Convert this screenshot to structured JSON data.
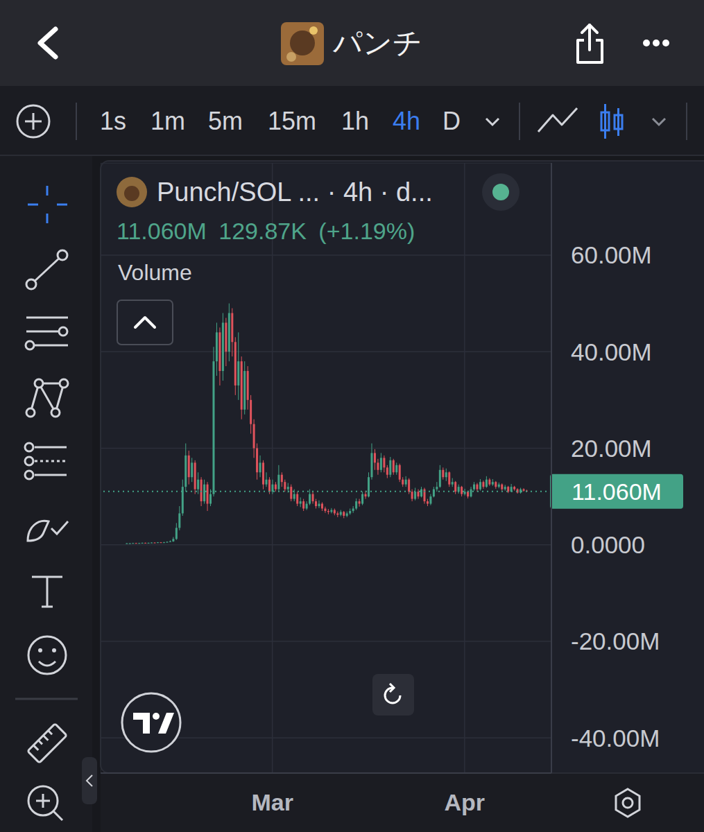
{
  "header": {
    "title": "パンチ"
  },
  "toolbar": {
    "timeframes": [
      "1s",
      "1m",
      "5m",
      "15m",
      "1h",
      "4h",
      "D"
    ],
    "active": "4h"
  },
  "chart_data": {
    "type": "candlestick",
    "title": "Punch/SOL ... · 4h · d...",
    "subtitle": "11.060M 129.87K (+1.19%)",
    "annotations": [
      "Volume"
    ],
    "grid": true,
    "last": {
      "value": 11.06,
      "label": "11.060M"
    },
    "xlim": [
      0.3,
      73
    ],
    "xticks": [
      {
        "value": 28,
        "label": "Mar"
      },
      {
        "value": 59,
        "label": "Apr"
      }
    ],
    "ylim": [
      -47.3,
      79.1
    ],
    "yticks": [
      {
        "value": -40,
        "label": "-40.00M"
      },
      {
        "value": -20,
        "label": "-20.00M"
      },
      {
        "value": 0,
        "label": "0.0000"
      },
      {
        "value": 20,
        "label": "20.00M"
      },
      {
        "value": 40,
        "label": "40.00M"
      },
      {
        "value": 60,
        "label": "60.00M"
      }
    ],
    "x": [
      4.5,
      5,
      5.5,
      6,
      6.5,
      7,
      7.5,
      8,
      8.5,
      9,
      9.5,
      10,
      10.5,
      11,
      11.5,
      12,
      12.5,
      13,
      13.5,
      14,
      14.5,
      15,
      15.5,
      16,
      16.5,
      17,
      17.5,
      18,
      18.5,
      19,
      19.5,
      20,
      20.5,
      21,
      21.5,
      22,
      22.5,
      23,
      23.5,
      24,
      24.5,
      25,
      25.5,
      26,
      26.5,
      27,
      27.5,
      28,
      28.5,
      29,
      29.5,
      30,
      30.5,
      31,
      31.5,
      32,
      32.5,
      33,
      33.5,
      34,
      34.5,
      35,
      35.5,
      36,
      36.5,
      37,
      37.5,
      38,
      38.5,
      39,
      39.5,
      40,
      40.5,
      41,
      41.5,
      42,
      42.5,
      43,
      43.5,
      44,
      44.5,
      45,
      45.5,
      46,
      46.5,
      47,
      47.5,
      48,
      48.5,
      49,
      49.5,
      50,
      50.5,
      51,
      51.5,
      52,
      52.5,
      53,
      53.5,
      54,
      54.5,
      55,
      55.5,
      56,
      56.5,
      57,
      57.5,
      58,
      58.5,
      59,
      59.5,
      60,
      60.5,
      61,
      61.5,
      62,
      62.5,
      63,
      63.5,
      64,
      64.5,
      65,
      65.5,
      66,
      66.5,
      67,
      67.5,
      68,
      68.5,
      69
    ],
    "open": [
      0.3,
      0.3,
      0.3,
      0.35,
      0.3,
      0.35,
      0.4,
      0.35,
      0.4,
      0.45,
      0.4,
      0.5,
      0.45,
      0.5,
      0.6,
      0.7,
      1.2,
      3.5,
      6.5,
      12,
      18.5,
      14,
      17,
      11.5,
      13.5,
      9,
      12.5,
      8.5,
      10.5,
      38,
      44,
      36,
      46,
      40,
      48,
      42,
      33,
      38,
      28,
      36,
      30,
      25,
      20,
      15,
      17,
      12.5,
      13.5,
      11,
      12.5,
      11.5,
      14.5,
      13,
      11.5,
      12,
      9.5,
      10.5,
      8.5,
      9,
      7.5,
      8.5,
      10.5,
      9,
      8,
      8.5,
      7.5,
      7,
      6.8,
      7.2,
      6.5,
      6.2,
      6.8,
      6,
      6.5,
      7,
      7.5,
      9,
      8.5,
      10.5,
      10,
      14,
      19,
      17,
      15.5,
      18,
      16,
      14.5,
      17.5,
      15,
      16.5,
      13.5,
      12.5,
      13.5,
      11,
      9.5,
      11,
      10,
      11.5,
      9,
      8.5,
      10,
      11.5,
      12,
      15.5,
      14,
      15,
      12.5,
      13,
      11,
      12,
      10.5,
      11,
      10,
      11.5,
      12.5,
      11.5,
      13,
      12,
      13.5,
      12.5,
      13,
      12,
      12.5,
      11.5,
      12,
      11,
      12,
      11.5,
      10.8,
      11.5,
      11.2
    ],
    "high": [
      0.35,
      0.35,
      0.4,
      0.4,
      0.4,
      0.45,
      0.45,
      0.45,
      0.5,
      0.5,
      0.55,
      0.55,
      0.6,
      0.7,
      0.9,
      1.6,
      4.5,
      8,
      13.5,
      21,
      19.5,
      18,
      17.5,
      15,
      14,
      13.5,
      13,
      11.5,
      41,
      46,
      45,
      48,
      47,
      50,
      49,
      43,
      44,
      39,
      38,
      37,
      31,
      26,
      21,
      18.5,
      17.5,
      15,
      14,
      13.5,
      13,
      16.5,
      15,
      13.5,
      12.8,
      12.5,
      11.5,
      11,
      9.8,
      9.5,
      9,
      11.5,
      11,
      9.5,
      9.2,
      8.8,
      7.9,
      7.4,
      7.6,
      7.5,
      6.9,
      7.2,
      7,
      6.9,
      7.5,
      8,
      9.6,
      9.5,
      11,
      11.2,
      15,
      21,
      19.8,
      17.8,
      19,
      18.5,
      16.5,
      18.2,
      17.8,
      17,
      16.8,
      14,
      14.2,
      13.8,
      11.5,
      11.8,
      11.5,
      12,
      11.8,
      9.5,
      10.5,
      12,
      13,
      16.5,
      16,
      15.8,
      15.2,
      13.8,
      13.2,
      12.5,
      12.2,
      11.6,
      11.2,
      12,
      13,
      12.8,
      13.6,
      13.3,
      14.2,
      13.8,
      13.6,
      13.2,
      12.9,
      12.7,
      12.4,
      12.2,
      12.6,
      12.2,
      11.7,
      11.8,
      11.7,
      11.4
    ],
    "low": [
      0.25,
      0.25,
      0.28,
      0.28,
      0.28,
      0.32,
      0.3,
      0.32,
      0.38,
      0.35,
      0.38,
      0.4,
      0.42,
      0.45,
      0.55,
      0.6,
      1,
      3,
      6,
      11,
      12.5,
      13,
      10.5,
      10.5,
      8,
      8.5,
      7,
      8,
      10,
      35,
      33,
      34,
      37,
      38,
      39,
      31,
      30,
      26,
      27,
      28,
      23,
      18,
      13.5,
      14,
      11.5,
      12,
      10.5,
      10.5,
      11,
      11,
      12,
      11,
      10.8,
      9,
      9,
      8,
      7.8,
      7,
      7.2,
      8.2,
      8.5,
      7.5,
      7.6,
      7,
      6.6,
      6.3,
      6.5,
      6.1,
      5.7,
      5.9,
      5.5,
      5.7,
      6.2,
      6.6,
      7.2,
      7.9,
      8.2,
      9.5,
      9.8,
      13.5,
      15.5,
      14.5,
      15,
      15,
      13.8,
      14,
      14.5,
      14.5,
      13,
      12,
      12,
      10.5,
      9,
      9.2,
      9.5,
      9.8,
      8.5,
      8,
      8.2,
      9.8,
      11,
      11.8,
      13.5,
      13.2,
      12,
      12,
      10.5,
      10.6,
      10,
      10.2,
      9.6,
      9.8,
      11.2,
      11,
      11.2,
      11.6,
      11.8,
      12.2,
      12.2,
      11.6,
      11.7,
      11.2,
      11.2,
      10.7,
      10.9,
      11.2,
      10.6,
      10.6,
      11,
      10.9
    ],
    "close": [
      0.3,
      0.3,
      0.35,
      0.3,
      0.35,
      0.4,
      0.35,
      0.4,
      0.45,
      0.4,
      0.5,
      0.45,
      0.5,
      0.6,
      0.7,
      1.2,
      3.5,
      6.5,
      12,
      18.5,
      14,
      17,
      11.5,
      13.5,
      9,
      12.5,
      8.5,
      10.5,
      38,
      44,
      36,
      46,
      40,
      48,
      42,
      33,
      38,
      28,
      36,
      30,
      25,
      20,
      15,
      17,
      12.5,
      13.5,
      11,
      12.5,
      11.5,
      14.5,
      13,
      11.5,
      12,
      9.5,
      10.5,
      8.5,
      9,
      7.5,
      8.5,
      10.5,
      9,
      8,
      8.5,
      7.5,
      7,
      6.8,
      7.2,
      6.5,
      6.2,
      6.8,
      6,
      6.5,
      7,
      7.5,
      9,
      8.5,
      10.5,
      10,
      14,
      19,
      17,
      15.5,
      18,
      16,
      14.5,
      17.5,
      15,
      16.5,
      13.5,
      12.5,
      13.5,
      11,
      9.5,
      11,
      10,
      11.5,
      9,
      8.5,
      10,
      11.5,
      12,
      15.5,
      14,
      15,
      12.5,
      13,
      11,
      12,
      10.5,
      11,
      10,
      11.5,
      12.5,
      11.5,
      13,
      12,
      13.5,
      12.5,
      13,
      12,
      12.5,
      11.5,
      12,
      11,
      12,
      11.5,
      10.8,
      11.5,
      11.2,
      11.06
    ]
  }
}
